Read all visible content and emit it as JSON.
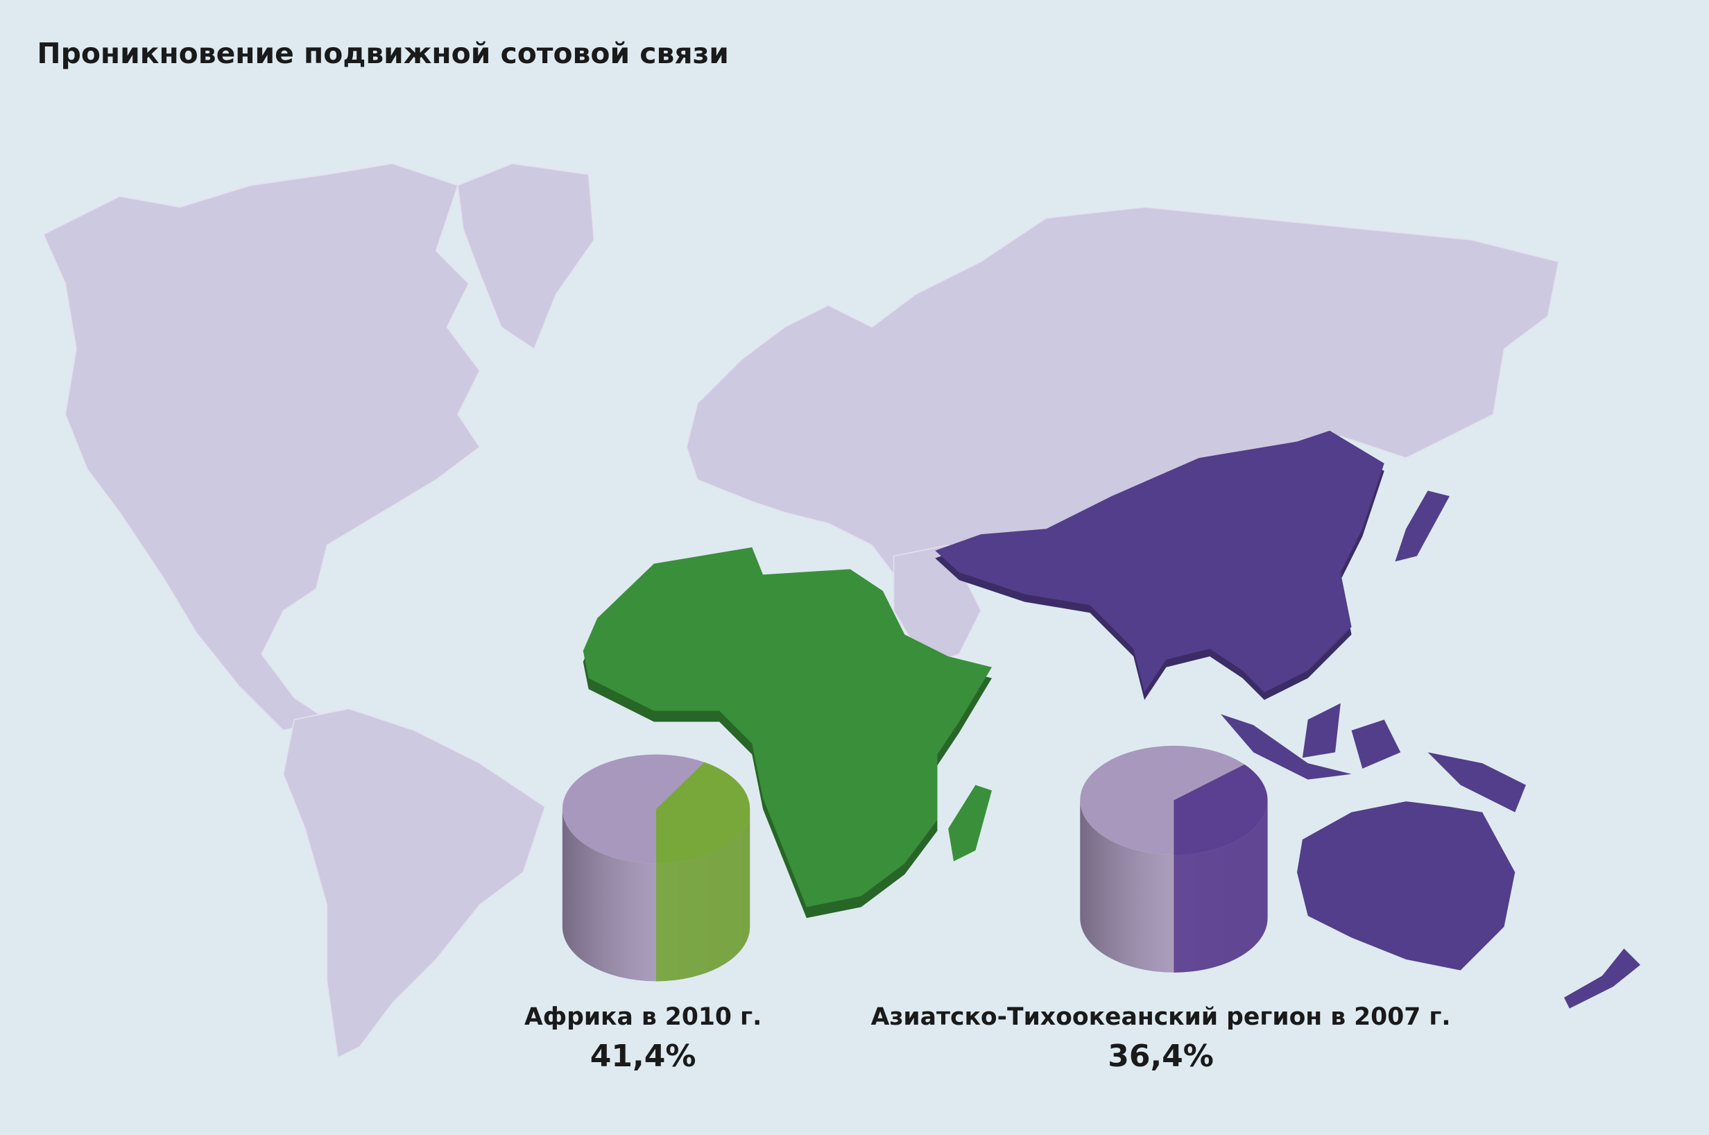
{
  "title": "Проникновение подвижной сотовой связи",
  "chart_data": [
    {
      "type": "pie",
      "title": "Африка в 2010 г.",
      "values": [
        41.4
      ],
      "value_labels": [
        "41,4%"
      ],
      "color": "#78a83a"
    },
    {
      "type": "pie",
      "title": "Азиатско-Тихоокеанский регион в 2007 г.",
      "values": [
        36.4
      ],
      "value_labels": [
        "36,4%"
      ],
      "color": "#5b3f91"
    }
  ]
}
